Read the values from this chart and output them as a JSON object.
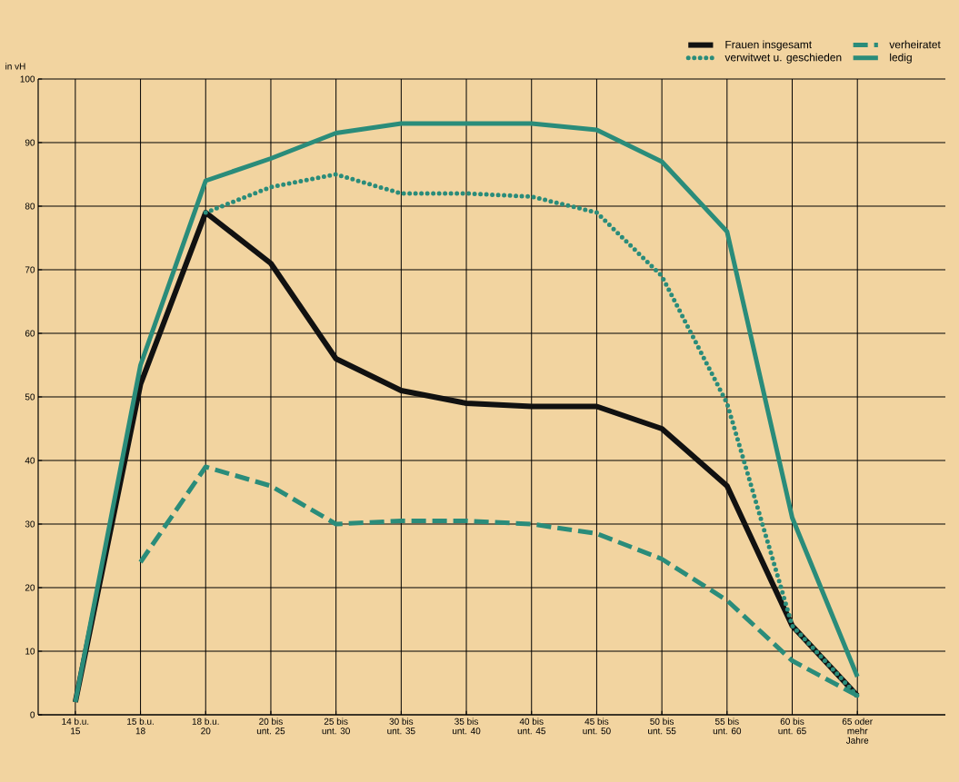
{
  "chart_data": {
    "type": "line",
    "ylabel": "in vH",
    "categories": [
      "14 b.u. 15",
      "15 b.u. 18",
      "18 b.u. 20",
      "20 bis unt. 25",
      "25 bis unt. 30",
      "30 bis unt. 35",
      "35 bis unt. 40",
      "40 bis unt. 45",
      "45 bis unt. 50",
      "50 bis unt. 55",
      "55 bis unt. 60",
      "60 bis unt. 65",
      "65 oder mehr Jahre"
    ],
    "ylim": [
      0,
      100
    ],
    "yticks": [
      0,
      10,
      20,
      30,
      40,
      50,
      60,
      70,
      80,
      90,
      100
    ],
    "grid": true,
    "legend": "top right",
    "series": [
      {
        "name": "Frauen insgesamt",
        "color": "#111111",
        "line_style": "solid",
        "values": [
          2,
          52,
          79,
          71,
          56,
          51,
          49,
          48.5,
          48.5,
          45,
          36,
          14,
          3
        ]
      },
      {
        "name": "verheiratet",
        "color": "#2a8c7a",
        "line_style": "dashed",
        "values": [
          null,
          24,
          39,
          36,
          30,
          30.5,
          30.5,
          30,
          28.5,
          24.5,
          18,
          8.5,
          3
        ]
      },
      {
        "name": "verwitwet u. geschieden",
        "color": "#2a8c7a",
        "line_style": "dotted",
        "values": [
          null,
          null,
          79,
          83,
          85,
          82,
          82,
          81.5,
          79,
          69,
          49,
          14,
          3
        ]
      },
      {
        "name": "ledig",
        "color": "#2a8c7a",
        "line_style": "solid",
        "values": [
          2,
          55,
          84,
          87.5,
          91.5,
          93,
          93,
          93,
          92,
          87,
          76,
          31,
          6
        ]
      }
    ]
  }
}
